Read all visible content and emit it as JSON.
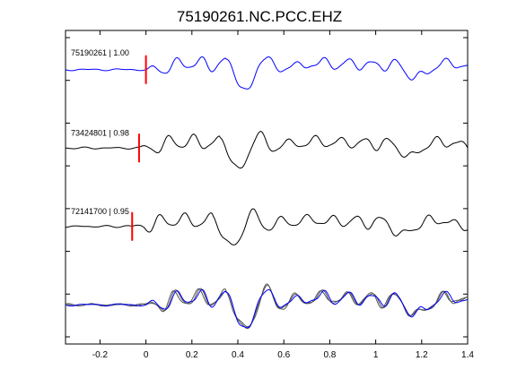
{
  "title": "75190261.NC.PCC.EHZ",
  "chart_data": {
    "type": "line",
    "title": "75190261.NC.PCC.EHZ",
    "xlabel": "",
    "ylabel": "",
    "xlim": [
      -0.35,
      1.4
    ],
    "xticks": [
      -0.2,
      0,
      0.2,
      0.4,
      0.6,
      0.8,
      1,
      1.2,
      1.4
    ],
    "xtick_labels": [
      "-0.2",
      "0",
      "0.2",
      "0.4",
      "0.6",
      "0.8",
      "1",
      "1.2",
      "1.4"
    ],
    "ylim": [
      0,
      8
    ],
    "y_tick_count": 8,
    "y_tick_labels_shown": false,
    "grid": false,
    "series": [
      {
        "name": "75190261 | 1.00",
        "correlation": 1.0,
        "pick_time": 0.0,
        "offset": 7,
        "color": "#0000ff"
      },
      {
        "name": "73424801 | 0.98",
        "correlation": 0.98,
        "pick_time": -0.03,
        "offset": 5,
        "color": "#000000"
      },
      {
        "name": "72141700 | 0.95",
        "correlation": 0.95,
        "pick_time": -0.06,
        "offset": 3,
        "color": "#000000"
      }
    ],
    "stack_offset": 1,
    "pick_marker_color": "#ff0000"
  }
}
